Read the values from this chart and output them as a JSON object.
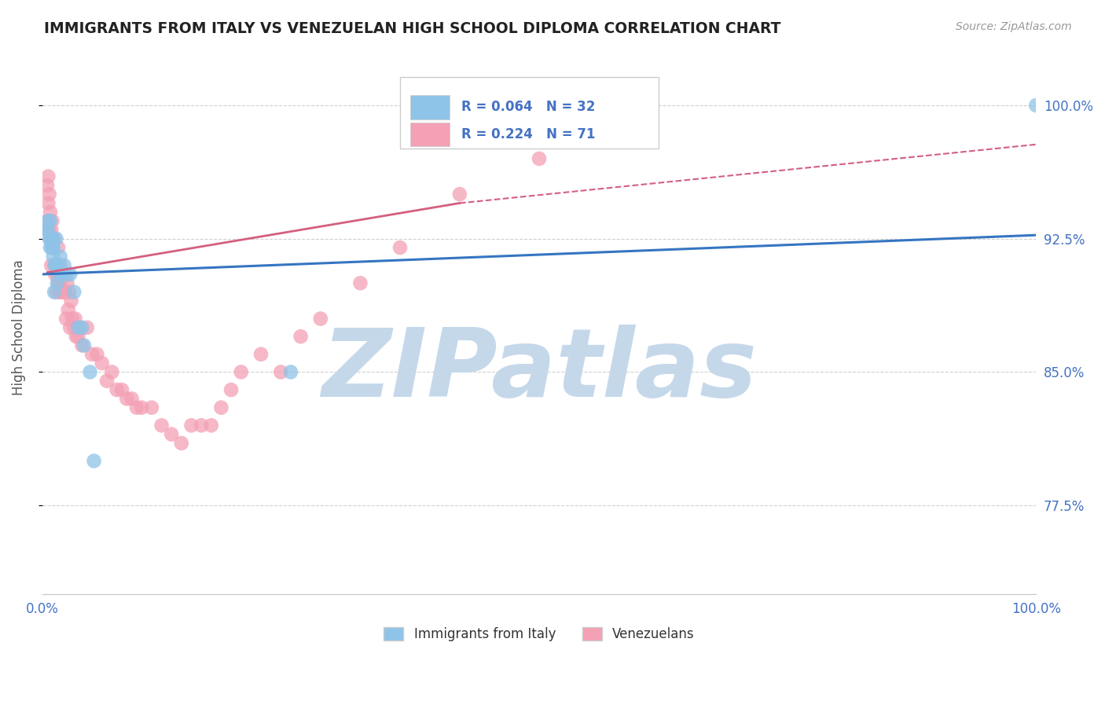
{
  "title": "IMMIGRANTS FROM ITALY VS VENEZUELAN HIGH SCHOOL DIPLOMA CORRELATION CHART",
  "source": "Source: ZipAtlas.com",
  "ylabel": "High School Diploma",
  "xlim": [
    0.0,
    1.0
  ],
  "ylim": [
    0.725,
    1.025
  ],
  "yticks": [
    0.775,
    0.85,
    0.925,
    1.0
  ],
  "ytick_labels": [
    "77.5%",
    "85.0%",
    "92.5%",
    "100.0%"
  ],
  "xtick_labels": [
    "0.0%",
    "100.0%"
  ],
  "legend_r1": "R = 0.064",
  "legend_n1": "N = 32",
  "legend_r2": "R = 0.224",
  "legend_n2": "N = 71",
  "legend_label1": "Immigrants from Italy",
  "legend_label2": "Venezuelans",
  "color_italy": "#8ec4e8",
  "color_venezuela": "#f4a0b5",
  "color_italy_line": "#3575c2",
  "color_venezuela_line": "#d45f80",
  "color_axis_text": "#4472C4",
  "color_grid": "#d0d0d0",
  "watermark": "ZIPatlas",
  "watermark_color": "#c5d8ea",
  "italy_x": [
    0.005,
    0.005,
    0.006,
    0.007,
    0.008,
    0.008,
    0.009,
    0.009,
    0.01,
    0.01,
    0.011,
    0.011,
    0.012,
    0.013,
    0.013,
    0.014,
    0.015,
    0.016,
    0.017,
    0.018,
    0.02,
    0.022,
    0.025,
    0.028,
    0.032,
    0.036,
    0.04,
    0.042,
    0.048,
    0.052,
    0.25,
    1.0
  ],
  "italy_y": [
    0.93,
    0.93,
    0.935,
    0.925,
    0.92,
    0.935,
    0.925,
    0.925,
    0.92,
    0.925,
    0.915,
    0.92,
    0.895,
    0.91,
    0.91,
    0.925,
    0.9,
    0.91,
    0.905,
    0.915,
    0.905,
    0.91,
    0.905,
    0.905,
    0.895,
    0.875,
    0.875,
    0.865,
    0.85,
    0.8,
    0.85,
    1.0
  ],
  "venezuela_x": [
    0.005,
    0.005,
    0.006,
    0.006,
    0.007,
    0.007,
    0.008,
    0.008,
    0.009,
    0.009,
    0.01,
    0.01,
    0.011,
    0.012,
    0.012,
    0.013,
    0.014,
    0.015,
    0.016,
    0.016,
    0.017,
    0.018,
    0.018,
    0.019,
    0.02,
    0.021,
    0.022,
    0.023,
    0.024,
    0.025,
    0.026,
    0.027,
    0.028,
    0.029,
    0.03,
    0.032,
    0.033,
    0.034,
    0.036,
    0.038,
    0.04,
    0.045,
    0.05,
    0.055,
    0.06,
    0.065,
    0.07,
    0.075,
    0.08,
    0.085,
    0.09,
    0.095,
    0.1,
    0.11,
    0.12,
    0.13,
    0.14,
    0.15,
    0.16,
    0.17,
    0.18,
    0.19,
    0.2,
    0.22,
    0.24,
    0.26,
    0.28,
    0.32,
    0.36,
    0.42,
    0.5
  ],
  "venezuela_y": [
    0.935,
    0.955,
    0.945,
    0.96,
    0.93,
    0.95,
    0.925,
    0.94,
    0.91,
    0.93,
    0.92,
    0.935,
    0.925,
    0.91,
    0.925,
    0.905,
    0.895,
    0.905,
    0.9,
    0.92,
    0.895,
    0.9,
    0.91,
    0.895,
    0.905,
    0.895,
    0.905,
    0.895,
    0.88,
    0.9,
    0.885,
    0.895,
    0.875,
    0.89,
    0.88,
    0.875,
    0.88,
    0.87,
    0.87,
    0.875,
    0.865,
    0.875,
    0.86,
    0.86,
    0.855,
    0.845,
    0.85,
    0.84,
    0.84,
    0.835,
    0.835,
    0.83,
    0.83,
    0.83,
    0.82,
    0.815,
    0.81,
    0.82,
    0.82,
    0.82,
    0.83,
    0.84,
    0.85,
    0.86,
    0.85,
    0.87,
    0.88,
    0.9,
    0.92,
    0.95,
    0.97
  ],
  "italy_line_x0": 0.0,
  "italy_line_x1": 1.0,
  "italy_line_y0": 0.905,
  "italy_line_y1": 0.927,
  "ven_line_solid_x0": 0.005,
  "ven_line_solid_x1": 0.42,
  "ven_line_y0": 0.906,
  "ven_line_y1": 0.945,
  "ven_line_dash_x0": 0.42,
  "ven_line_dash_x1": 1.0,
  "ven_line_dash_y0": 0.945,
  "ven_line_dash_y1": 0.978
}
